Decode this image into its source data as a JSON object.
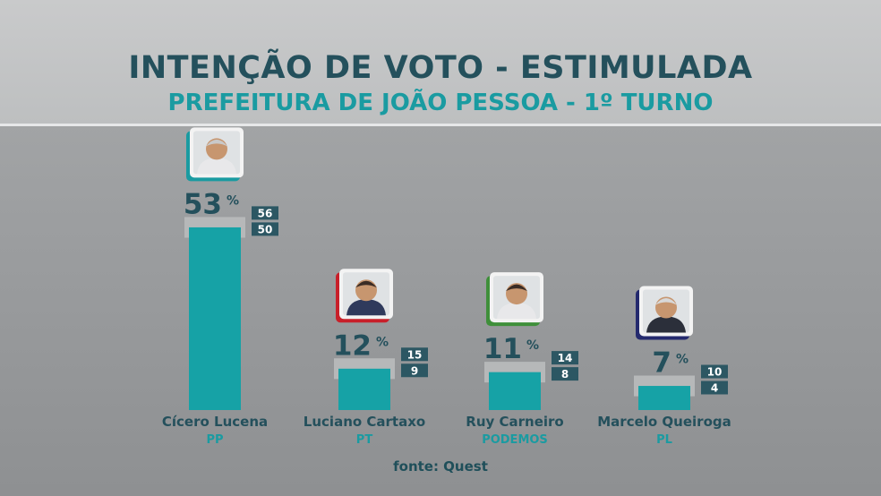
{
  "title": "INTENÇÃO DE VOTO - ESTIMULADA",
  "subtitle": "PREFEITURA DE JOÃO PESSOA - 1º TURNO",
  "source": "fonte: Quest",
  "colors": {
    "bar": "#16a2a6",
    "margin_band": "#b6b8b9",
    "title": "#24505c",
    "accent": "#1a9ba1",
    "range_box": "#2c5763"
  },
  "chart_data": {
    "type": "bar",
    "unit": "%",
    "ylim": [
      0,
      60
    ],
    "grid": false,
    "legend": "none",
    "categories": [
      "Cícero Lucena",
      "Luciano Cartaxo",
      "Ruy Carneiro",
      "Marcelo Queiroga"
    ],
    "parties": [
      "PP",
      "PT",
      "PODEMOS",
      "PL"
    ],
    "values": [
      53,
      12,
      11,
      7
    ],
    "upper": [
      56,
      15,
      14,
      10
    ],
    "lower": [
      50,
      9,
      8,
      4
    ],
    "photo_accent_colors": [
      "#1a9ba1",
      "#c8202a",
      "#3f8f3a",
      "#242a6e"
    ],
    "photo_icons": [
      "candidate-photo-icon",
      "candidate-photo-icon",
      "candidate-photo-icon",
      "candidate-photo-icon"
    ]
  }
}
